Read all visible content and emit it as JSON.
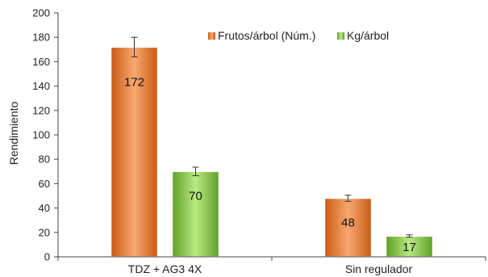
{
  "chart_data": {
    "type": "bar",
    "categories": [
      "TDZ + AG3 4X",
      "Sin regulador"
    ],
    "series": [
      {
        "name": "Frutos/árbol (Núm.)",
        "values": [
          172,
          48
        ],
        "errors": [
          8,
          2.5
        ],
        "color": "#ed7d31"
      },
      {
        "name": "Kg/árbol",
        "values": [
          70,
          17
        ],
        "errors": [
          3.5,
          1
        ],
        "color": "#8fd14f"
      }
    ],
    "data_labels": [
      "172",
      "48",
      "70",
      "17"
    ],
    "ylabel": "Rendimiento",
    "xlabel": "",
    "ylim": [
      0,
      200
    ],
    "yticks": [
      "0",
      "20",
      "40",
      "60",
      "80",
      "100",
      "120",
      "140",
      "160",
      "180",
      "200"
    ],
    "legend_position": "top-right",
    "grid": false
  }
}
